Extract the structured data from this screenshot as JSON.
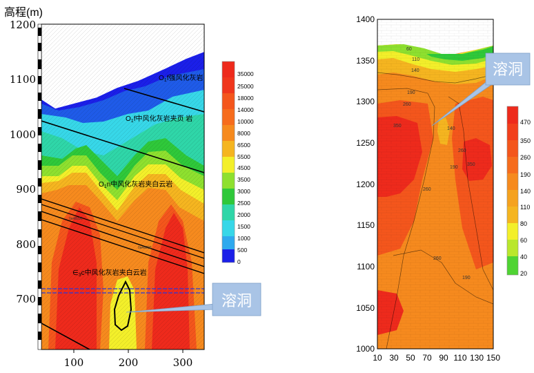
{
  "chart_data": [
    {
      "type": "heatmap",
      "ylabel": "高程(m)",
      "x_ticks": [
        "100",
        "200",
        "300"
      ],
      "y_ticks": [
        "1200",
        "1100",
        "1000",
        "900",
        "800",
        "700"
      ],
      "ylim": [
        600,
        1200
      ],
      "xlim": [
        40,
        340
      ],
      "colorbar": [
        "35000",
        "25000",
        "18000",
        "14000",
        "10000",
        "8000",
        "6500",
        "5500",
        "4500",
        "3500",
        "3000",
        "2500",
        "2000",
        "1500",
        "1000",
        "500",
        "0"
      ],
      "layer_labels": [
        {
          "prefix": "O",
          "sub": "1",
          "text": "f强风化灰岩"
        },
        {
          "prefix": "O",
          "sub": "1",
          "text": "f中风化灰岩夹页 岩"
        },
        {
          "prefix": "O",
          "sub": "1",
          "text": "n中风化灰岩夹白云岩"
        },
        {
          "prefix": "∈",
          "sub": "3",
          "text": "c中风化灰岩夹白云岩"
        }
      ],
      "small_labels": [
        "0a48200",
        "0a48200"
      ],
      "callout": "溶洞"
    },
    {
      "type": "heatmap",
      "x_ticks": [
        "10",
        "30",
        "50",
        "70",
        "90",
        "110",
        "130",
        "150"
      ],
      "y_ticks": [
        "1400",
        "1350",
        "1300",
        "1250",
        "1200",
        "1150",
        "1100",
        "1050",
        "1000"
      ],
      "xlim": [
        10,
        150
      ],
      "ylim": [
        1000,
        1400
      ],
      "colorbar": [
        "470",
        "350",
        "260",
        "190",
        "140",
        "110",
        "80",
        "60",
        "40",
        "20"
      ],
      "contour_labels": [
        "60",
        "110",
        "140",
        "190",
        "260",
        "350",
        "140",
        "190",
        "260",
        "350",
        "260",
        "260",
        "190"
      ],
      "callout": "溶洞"
    }
  ],
  "colors": {
    "red": "#ee2a1c",
    "orange_red": "#f4561c",
    "orange": "#f68a1e",
    "gold": "#f5b520",
    "yellow": "#f3ef2a",
    "lime": "#8ee02f",
    "green": "#2fc83a",
    "teal": "#2fd6a8",
    "cyan": "#37d7e8",
    "sky": "#2ea9ee",
    "blue": "#1f5be8",
    "navy": "#1b1fe8",
    "callout_fill": "#a9c4e6",
    "callout_text": "#ffffff"
  }
}
